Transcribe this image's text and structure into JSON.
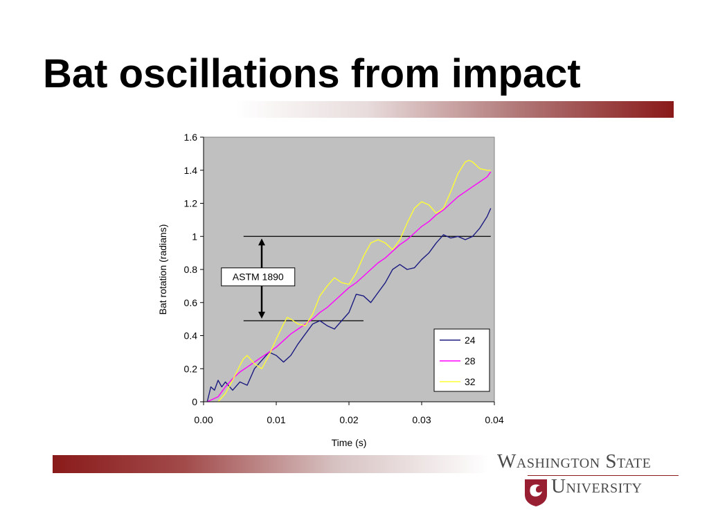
{
  "slide": {
    "title": "Bat oscillations from impact"
  },
  "logo": {
    "line1": "Washington State",
    "line2": "University",
    "colors": {
      "crimson": "#981e32",
      "gray": "#4a4a4a"
    }
  },
  "colors": {
    "plot_background": "#c0c0c0",
    "accent": "#8a1a1a"
  },
  "chart_data": {
    "type": "line",
    "title": "",
    "xlabel": "Time (s)",
    "ylabel": "Bat rotation (radians)",
    "xlim": [
      0,
      0.04
    ],
    "ylim": [
      0,
      1.6
    ],
    "xticks": [
      "0.00",
      "0.01",
      "0.02",
      "0.03",
      "0.04"
    ],
    "yticks": [
      "0",
      "0.2",
      "0.4",
      "0.6",
      "0.8",
      "1",
      "1.2",
      "1.4",
      "1.6"
    ],
    "grid": false,
    "legend": "bottom-right",
    "series": [
      {
        "name": "24",
        "color": "#1a1a80",
        "x": [
          0.0005,
          0.001,
          0.0015,
          0.002,
          0.0025,
          0.003,
          0.004,
          0.005,
          0.006,
          0.007,
          0.008,
          0.009,
          0.01,
          0.011,
          0.012,
          0.013,
          0.014,
          0.015,
          0.016,
          0.017,
          0.018,
          0.019,
          0.02,
          0.021,
          0.022,
          0.023,
          0.024,
          0.025,
          0.026,
          0.027,
          0.028,
          0.029,
          0.03,
          0.031,
          0.032,
          0.033,
          0.034,
          0.035,
          0.036,
          0.037,
          0.038,
          0.039,
          0.0395
        ],
        "y": [
          0.0,
          0.09,
          0.07,
          0.13,
          0.09,
          0.12,
          0.07,
          0.12,
          0.1,
          0.2,
          0.25,
          0.3,
          0.28,
          0.24,
          0.28,
          0.35,
          0.41,
          0.47,
          0.49,
          0.46,
          0.44,
          0.49,
          0.54,
          0.65,
          0.64,
          0.6,
          0.66,
          0.72,
          0.8,
          0.83,
          0.8,
          0.81,
          0.86,
          0.9,
          0.96,
          1.01,
          0.99,
          1.0,
          0.98,
          1.0,
          1.05,
          1.12,
          1.17
        ]
      },
      {
        "name": "28",
        "color": "#ff00ff",
        "x": [
          0.0005,
          0.002,
          0.003,
          0.004,
          0.005,
          0.006,
          0.007,
          0.008,
          0.009,
          0.01,
          0.011,
          0.012,
          0.013,
          0.014,
          0.015,
          0.016,
          0.017,
          0.018,
          0.019,
          0.02,
          0.021,
          0.022,
          0.023,
          0.024,
          0.025,
          0.026,
          0.027,
          0.028,
          0.029,
          0.03,
          0.031,
          0.032,
          0.033,
          0.034,
          0.035,
          0.036,
          0.037,
          0.038,
          0.039,
          0.0395
        ],
        "y": [
          0.0,
          0.03,
          0.09,
          0.14,
          0.18,
          0.21,
          0.24,
          0.27,
          0.3,
          0.33,
          0.37,
          0.41,
          0.44,
          0.47,
          0.5,
          0.54,
          0.57,
          0.61,
          0.65,
          0.69,
          0.72,
          0.76,
          0.8,
          0.84,
          0.87,
          0.91,
          0.95,
          0.98,
          1.02,
          1.06,
          1.09,
          1.13,
          1.16,
          1.2,
          1.24,
          1.27,
          1.3,
          1.33,
          1.36,
          1.39
        ]
      },
      {
        "name": "32",
        "color": "#ffff33",
        "x": [
          0.002,
          0.003,
          0.004,
          0.005,
          0.0055,
          0.006,
          0.007,
          0.008,
          0.009,
          0.01,
          0.011,
          0.0115,
          0.012,
          0.013,
          0.014,
          0.015,
          0.016,
          0.017,
          0.018,
          0.019,
          0.02,
          0.021,
          0.022,
          0.023,
          0.024,
          0.025,
          0.026,
          0.027,
          0.028,
          0.029,
          0.03,
          0.031,
          0.032,
          0.033,
          0.034,
          0.035,
          0.036,
          0.0365,
          0.037,
          0.038,
          0.039,
          0.0395
        ],
        "y": [
          0.0,
          0.05,
          0.13,
          0.22,
          0.26,
          0.28,
          0.23,
          0.2,
          0.28,
          0.38,
          0.47,
          0.51,
          0.5,
          0.47,
          0.46,
          0.53,
          0.64,
          0.7,
          0.75,
          0.72,
          0.71,
          0.78,
          0.88,
          0.96,
          0.98,
          0.96,
          0.92,
          0.98,
          1.08,
          1.17,
          1.21,
          1.19,
          1.14,
          1.17,
          1.27,
          1.38,
          1.45,
          1.46,
          1.45,
          1.41,
          1.4,
          1.4
        ]
      }
    ],
    "annotations": [
      {
        "type": "hline",
        "y": 1.0,
        "x": [
          0.0055,
          0.0395
        ]
      },
      {
        "type": "hline",
        "y": 0.49,
        "x": [
          0.0055,
          0.022
        ]
      },
      {
        "type": "double-arrow",
        "x": 0.008,
        "y": [
          0.49,
          1.0
        ]
      },
      {
        "type": "label",
        "text": "ASTM 1890",
        "x": 0.0075,
        "y": 0.755
      }
    ]
  }
}
